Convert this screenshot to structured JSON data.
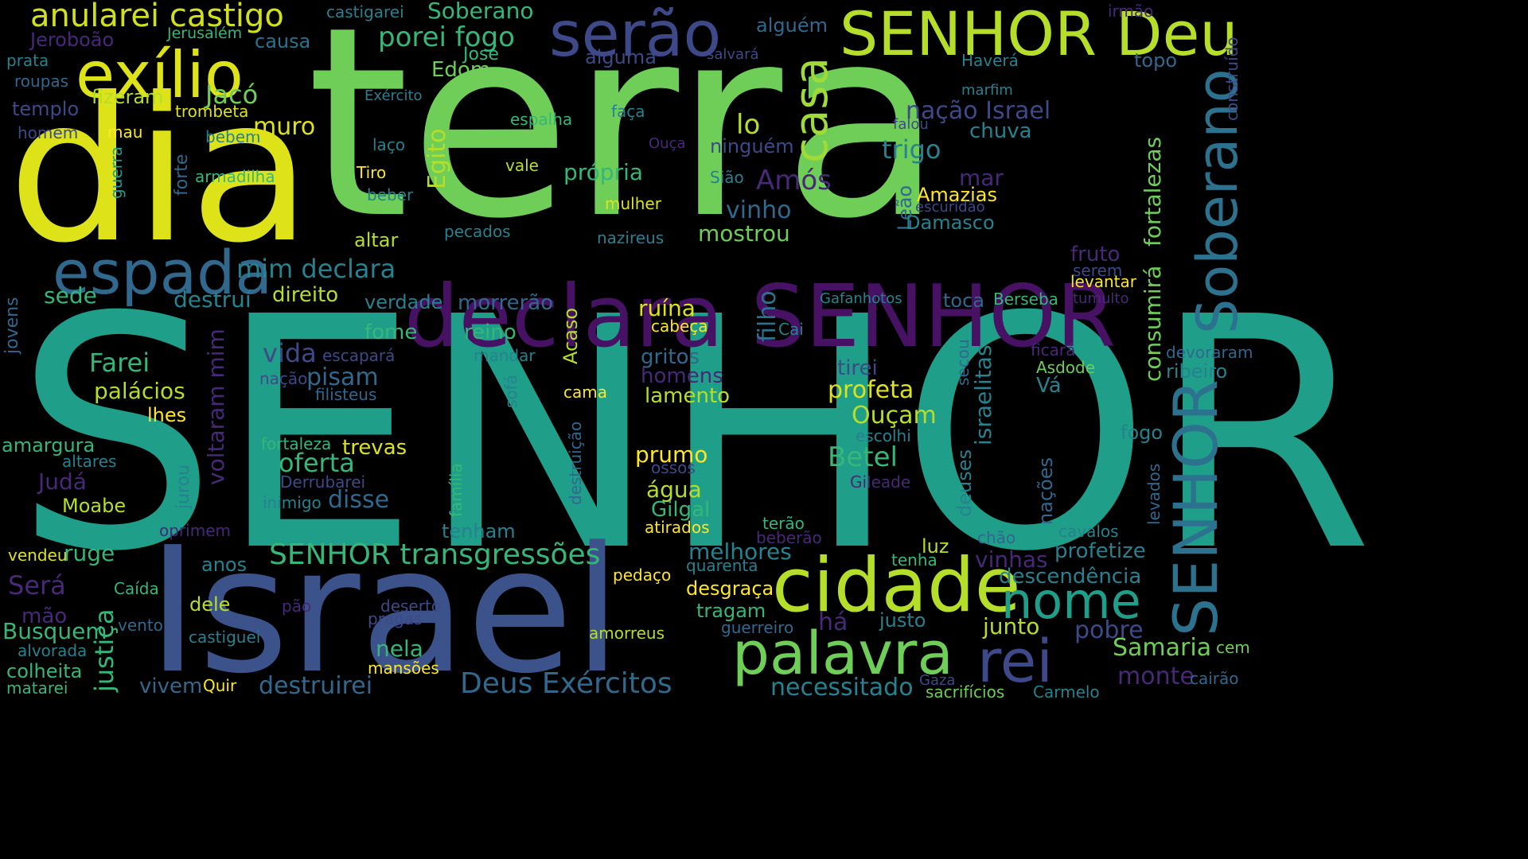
{
  "palette": [
    "#fde725",
    "#b5de2b",
    "#6ece58",
    "#35b779",
    "#1f9e89",
    "#26828e",
    "#31688e",
    "#3e4989",
    "#482878",
    "#440154"
  ],
  "words": [
    {
      "text": "terra",
      "color": "#6ece58"
    },
    {
      "text": "SENHOR",
      "color": "#1f9e89"
    },
    {
      "text": "dia",
      "color": "#dde318"
    },
    {
      "text": "Israel",
      "color": "#3b528b"
    },
    {
      "text": "declara SENHOR",
      "color": "#471164"
    },
    {
      "text": "exílio",
      "color": "#dde318"
    },
    {
      "text": "SENHOR Deu",
      "color": "#b5de2b"
    },
    {
      "text": "serão",
      "color": "#3e4989"
    },
    {
      "text": "espada",
      "color": "#31688e"
    },
    {
      "text": "cidade",
      "color": "#b5de2b"
    },
    {
      "text": "palavra",
      "color": "#6ece58"
    },
    {
      "text": "nome",
      "color": "#1f9e89"
    },
    {
      "text": "rei",
      "color": "#3e4989"
    },
    {
      "text": "Soberano",
      "color": "#2c728e"
    },
    {
      "text": "SENHOR",
      "color": "#2c728e"
    },
    {
      "text": "casa",
      "color": "#a0da39"
    },
    {
      "text": "anularei castigo",
      "color": "#d0e11c"
    },
    {
      "text": "porei fogo",
      "color": "#35b779"
    },
    {
      "text": "Soberano",
      "color": "#35b779"
    },
    {
      "text": "castigarei",
      "color": "#26828e"
    },
    {
      "text": "irmão",
      "color": "#482878"
    },
    {
      "text": "Jeroboão",
      "color": "#482878"
    },
    {
      "text": "Jerusalém",
      "color": "#35b779"
    },
    {
      "text": "causa",
      "color": "#2c728e"
    },
    {
      "text": "prata",
      "color": "#26828e"
    },
    {
      "text": "José",
      "color": "#35b779"
    },
    {
      "text": "Edom",
      "color": "#6ece58"
    },
    {
      "text": "alguma",
      "color": "#3e4989"
    },
    {
      "text": "salvará",
      "color": "#3e4989"
    },
    {
      "text": "Haverá",
      "color": "#26828e"
    },
    {
      "text": "topo",
      "color": "#31688e"
    },
    {
      "text": "construído",
      "color": "#3e4989"
    },
    {
      "text": "alguém",
      "color": "#31688e"
    },
    {
      "text": "roupas",
      "color": "#31688e"
    },
    {
      "text": "templo",
      "color": "#3e4989"
    },
    {
      "text": "fizeram",
      "color": "#b5de2b"
    },
    {
      "text": "Jacó",
      "color": "#6ece58"
    },
    {
      "text": "Exército",
      "color": "#26828e"
    },
    {
      "text": "marfim",
      "color": "#26828e"
    },
    {
      "text": "nação Israel",
      "color": "#3e4989"
    },
    {
      "text": "homem",
      "color": "#3e4989"
    },
    {
      "text": "trombeta",
      "color": "#dde318"
    },
    {
      "text": "espalha",
      "color": "#35b779"
    },
    {
      "text": "faça",
      "color": "#26828e"
    },
    {
      "text": "lo",
      "color": "#b5de2b"
    },
    {
      "text": "falou",
      "color": "#3e4989"
    },
    {
      "text": "chuva",
      "color": "#26828e"
    },
    {
      "text": "mau",
      "color": "#fde725"
    },
    {
      "text": "bebem",
      "color": "#26828e"
    },
    {
      "text": "muro",
      "color": "#dde318"
    },
    {
      "text": "Ouça",
      "color": "#482878"
    },
    {
      "text": "ninguém",
      "color": "#3e4989"
    },
    {
      "text": "trigo",
      "color": "#26828e"
    },
    {
      "text": "laço",
      "color": "#26828e"
    },
    {
      "text": "fortalezas",
      "color": "#6ece58"
    },
    {
      "text": "Egito",
      "color": "#b5de2b"
    },
    {
      "text": "forte",
      "color": "#31688e"
    },
    {
      "text": "guerra",
      "color": "#1f9e89"
    },
    {
      "text": "armadilha",
      "color": "#35b779"
    },
    {
      "text": "Tiro",
      "color": "#fde725"
    },
    {
      "text": "vale",
      "color": "#b5de2b"
    },
    {
      "text": "própria",
      "color": "#35b779"
    },
    {
      "text": "Sião",
      "color": "#26828e"
    },
    {
      "text": "Amós",
      "color": "#482878"
    },
    {
      "text": "mar",
      "color": "#482878"
    },
    {
      "text": "Leão",
      "color": "#31688e"
    },
    {
      "text": "Amazias",
      "color": "#fde725"
    },
    {
      "text": "escuridão",
      "color": "#3e4989"
    },
    {
      "text": "beber",
      "color": "#26828e"
    },
    {
      "text": "mulher",
      "color": "#dde318"
    },
    {
      "text": "vinho",
      "color": "#31688e"
    },
    {
      "text": "Damasco",
      "color": "#26828e"
    },
    {
      "text": "altar",
      "color": "#b5de2b"
    },
    {
      "text": "pecados",
      "color": "#26828e"
    },
    {
      "text": "nazireus",
      "color": "#26828e"
    },
    {
      "text": "mostrou",
      "color": "#6ece58"
    },
    {
      "text": "fruto",
      "color": "#482878"
    },
    {
      "text": "consumirá",
      "color": "#6ece58"
    },
    {
      "text": "serem",
      "color": "#3e4989"
    },
    {
      "text": "levantar",
      "color": "#fde725"
    },
    {
      "text": "mim declara",
      "color": "#26828e"
    },
    {
      "text": "filho",
      "color": "#2c728e"
    },
    {
      "text": "sede",
      "color": "#35b779"
    },
    {
      "text": "destruí",
      "color": "#26828e"
    },
    {
      "text": "direito",
      "color": "#b5de2b"
    },
    {
      "text": "verdade",
      "color": "#26828e"
    },
    {
      "text": "morrerão",
      "color": "#31688e"
    },
    {
      "text": "Gafanhotos",
      "color": "#26828e"
    },
    {
      "text": "toca",
      "color": "#31688e"
    },
    {
      "text": "Berseba",
      "color": "#35b779"
    },
    {
      "text": "tumulto",
      "color": "#482878"
    },
    {
      "text": "jovens",
      "color": "#31688e"
    },
    {
      "text": "ruína",
      "color": "#dde318"
    },
    {
      "text": "cabeça",
      "color": "#fde725"
    },
    {
      "text": "Acaso",
      "color": "#b5de2b"
    },
    {
      "text": "Cai",
      "color": "#26828e"
    },
    {
      "text": "israelitas",
      "color": "#26828e"
    },
    {
      "text": "fome",
      "color": "#35b779"
    },
    {
      "text": "reino",
      "color": "#35b779"
    },
    {
      "text": "vida",
      "color": "#3e4989"
    },
    {
      "text": "escapará",
      "color": "#3e4989"
    },
    {
      "text": "mandar",
      "color": "#26828e"
    },
    {
      "text": "gritos",
      "color": "#31688e"
    },
    {
      "text": "ficará",
      "color": "#482878"
    },
    {
      "text": "devoraram",
      "color": "#31688e"
    },
    {
      "text": "Farei",
      "color": "#35b779"
    },
    {
      "text": "voltaram mim",
      "color": "#482878"
    },
    {
      "text": "nação",
      "color": "#3e4989"
    },
    {
      "text": "pisam",
      "color": "#31688e"
    },
    {
      "text": "homens",
      "color": "#482878"
    },
    {
      "text": "tirei",
      "color": "#3e4989"
    },
    {
      "text": "secou",
      "color": "#31688e"
    },
    {
      "text": "Asdode",
      "color": "#6ece58"
    },
    {
      "text": "ribeiro",
      "color": "#26828e"
    },
    {
      "text": "palácios",
      "color": "#b5de2b"
    },
    {
      "text": "filisteus",
      "color": "#31688e"
    },
    {
      "text": "cama",
      "color": "#fde725"
    },
    {
      "text": "lamento",
      "color": "#b5de2b"
    },
    {
      "text": "profeta",
      "color": "#dde318"
    },
    {
      "text": "Vá",
      "color": "#26828e"
    },
    {
      "text": "lhes",
      "color": "#fde725"
    },
    {
      "text": "sofá",
      "color": "#26828e"
    },
    {
      "text": "Ouçam",
      "color": "#b5de2b"
    },
    {
      "text": "amargura",
      "color": "#35b779"
    },
    {
      "text": "fortaleza",
      "color": "#35b779"
    },
    {
      "text": "trevas",
      "color": "#dde318"
    },
    {
      "text": "destruição",
      "color": "#31688e"
    },
    {
      "text": "escolhi",
      "color": "#26828e"
    },
    {
      "text": "fogo",
      "color": "#26828e"
    },
    {
      "text": "altares",
      "color": "#26828e"
    },
    {
      "text": "oferta",
      "color": "#35b779"
    },
    {
      "text": "prumo",
      "color": "#fde725"
    },
    {
      "text": "Betel",
      "color": "#35b779"
    },
    {
      "text": "Judá",
      "color": "#482878"
    },
    {
      "text": "Derrubarei",
      "color": "#3e4989"
    },
    {
      "text": "ossos",
      "color": "#3e4989"
    },
    {
      "text": "Gileade",
      "color": "#482878"
    },
    {
      "text": "jurou",
      "color": "#26828e"
    },
    {
      "text": "deuses",
      "color": "#26828e"
    },
    {
      "text": "nações",
      "color": "#31688e"
    },
    {
      "text": "Moabe",
      "color": "#b5de2b"
    },
    {
      "text": "inimigo",
      "color": "#26828e"
    },
    {
      "text": "disse",
      "color": "#31688e"
    },
    {
      "text": "família",
      "color": "#35b779"
    },
    {
      "text": "água",
      "color": "#b5de2b"
    },
    {
      "text": "Gilgal",
      "color": "#35b779"
    },
    {
      "text": "levados",
      "color": "#31688e"
    },
    {
      "text": "oprimem",
      "color": "#482878"
    },
    {
      "text": "tenham",
      "color": "#26828e"
    },
    {
      "text": "atirados",
      "color": "#fde725"
    },
    {
      "text": "terão",
      "color": "#35b779"
    },
    {
      "text": "chão",
      "color": "#31688e"
    },
    {
      "text": "cavalos",
      "color": "#26828e"
    },
    {
      "text": "beberão",
      "color": "#482878"
    },
    {
      "text": "vendeu",
      "color": "#dde318"
    },
    {
      "text": "ruge",
      "color": "#35b779"
    },
    {
      "text": "SENHOR transgressões",
      "color": "#35b779"
    },
    {
      "text": "melhores",
      "color": "#26828e"
    },
    {
      "text": "luz",
      "color": "#b5de2b"
    },
    {
      "text": "profetize",
      "color": "#26828e"
    },
    {
      "text": "anos",
      "color": "#26828e"
    },
    {
      "text": "quarenta",
      "color": "#26828e"
    },
    {
      "text": "tenha",
      "color": "#35b779"
    },
    {
      "text": "vinhas",
      "color": "#482878"
    },
    {
      "text": "Será",
      "color": "#482878"
    },
    {
      "text": "justiça",
      "color": "#35b779"
    },
    {
      "text": "Caída",
      "color": "#35b779"
    },
    {
      "text": "pedaço",
      "color": "#fde725"
    },
    {
      "text": "desgraça",
      "color": "#fde725"
    },
    {
      "text": "descendência",
      "color": "#26828e"
    },
    {
      "text": "mão",
      "color": "#482878"
    },
    {
      "text": "dele",
      "color": "#b5de2b"
    },
    {
      "text": "pão",
      "color": "#482878"
    },
    {
      "text": "deserto",
      "color": "#3e4989"
    },
    {
      "text": "tragam",
      "color": "#35b779"
    },
    {
      "text": "vento",
      "color": "#31688e"
    },
    {
      "text": "pragas",
      "color": "#3e4989"
    },
    {
      "text": "há",
      "color": "#482878"
    },
    {
      "text": "justo",
      "color": "#26828e"
    },
    {
      "text": "junto",
      "color": "#b5de2b"
    },
    {
      "text": "Busquem",
      "color": "#35b779"
    },
    {
      "text": "castiguei",
      "color": "#26828e"
    },
    {
      "text": "amorreus",
      "color": "#b5de2b"
    },
    {
      "text": "guerreiro",
      "color": "#31688e"
    },
    {
      "text": "pobre",
      "color": "#3e4989"
    },
    {
      "text": "alvorada",
      "color": "#26828e"
    },
    {
      "text": "nela",
      "color": "#35b779"
    },
    {
      "text": "Samaria",
      "color": "#6ece58"
    },
    {
      "text": "cem",
      "color": "#6ece58"
    },
    {
      "text": "colheita",
      "color": "#35b779"
    },
    {
      "text": "mansões",
      "color": "#fde725"
    },
    {
      "text": "monte",
      "color": "#482878"
    },
    {
      "text": "cairão",
      "color": "#31688e"
    },
    {
      "text": "matarei",
      "color": "#35b779"
    },
    {
      "text": "vivem",
      "color": "#31688e"
    },
    {
      "text": "Quir",
      "color": "#fde725"
    },
    {
      "text": "destruirei",
      "color": "#31688e"
    },
    {
      "text": "Deus Exércitos",
      "color": "#31688e"
    },
    {
      "text": "necessitado",
      "color": "#26828e"
    },
    {
      "text": "Gaza",
      "color": "#3e4989"
    },
    {
      "text": "sacrifícios",
      "color": "#6ece58"
    },
    {
      "text": "Carmelo",
      "color": "#26828e"
    }
  ]
}
